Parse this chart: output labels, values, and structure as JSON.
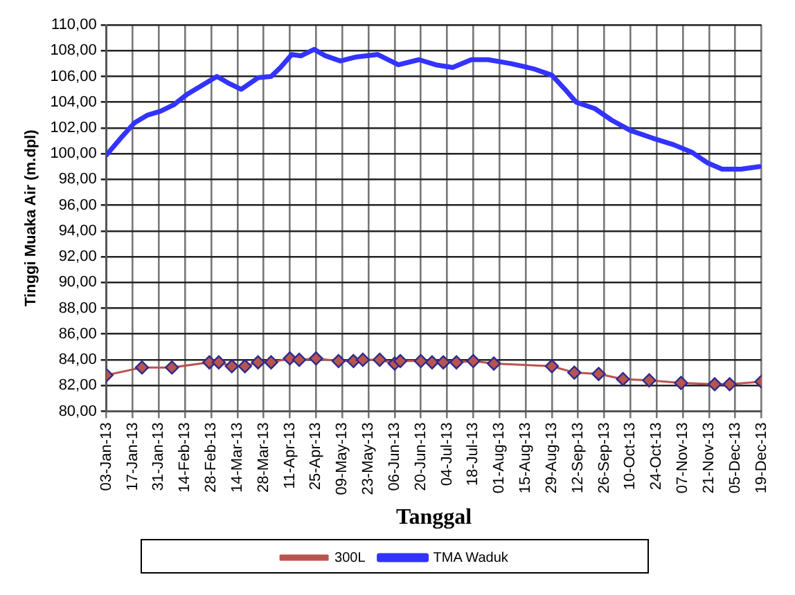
{
  "chart_data": {
    "type": "line",
    "xlabel": "Tanggal",
    "ylabel": "Tinggi Muaka Air (m.dpl)",
    "ylim": [
      80,
      110
    ],
    "yticks": [
      {
        "value": 80,
        "label": "80,00"
      },
      {
        "value": 82,
        "label": "82,00"
      },
      {
        "value": 84,
        "label": "84,00"
      },
      {
        "value": 86,
        "label": "86,00"
      },
      {
        "value": 88,
        "label": "88,00"
      },
      {
        "value": 90,
        "label": "90,00"
      },
      {
        "value": 92,
        "label": "92,00"
      },
      {
        "value": 94,
        "label": "94,00"
      },
      {
        "value": 96,
        "label": "96,00"
      },
      {
        "value": 98,
        "label": "98,00"
      },
      {
        "value": 100,
        "label": "100,00"
      },
      {
        "value": 102,
        "label": "102,00"
      },
      {
        "value": 104,
        "label": "104,00"
      },
      {
        "value": 106,
        "label": "106,00"
      },
      {
        "value": 108,
        "label": "108,00"
      },
      {
        "value": 110,
        "label": "110,00"
      }
    ],
    "xlim": [
      "--01-03",
      "--12-19"
    ],
    "xticks": [
      {
        "value": "--01-03",
        "label": "03-Jan-13"
      },
      {
        "value": "--01-17",
        "label": "17-Jan-13"
      },
      {
        "value": "--01-31",
        "label": "31-Jan-13"
      },
      {
        "value": "--02-14",
        "label": "14-Feb-13"
      },
      {
        "value": "--02-28",
        "label": "28-Feb-13"
      },
      {
        "value": "--03-14",
        "label": "14-Mar-13"
      },
      {
        "value": "--03-28",
        "label": "28-Mar-13"
      },
      {
        "value": "--04-11",
        "label": "11-Apr-13"
      },
      {
        "value": "--04-25",
        "label": "25-Apr-13"
      },
      {
        "value": "--05-09",
        "label": "09-May-13"
      },
      {
        "value": "--05-23",
        "label": "23-May-13"
      },
      {
        "value": "--06-06",
        "label": "06-Jun-13"
      },
      {
        "value": "--06-20",
        "label": "20-Jun-13"
      },
      {
        "value": "--07-04",
        "label": "04-Jul-13"
      },
      {
        "value": "--07-18",
        "label": "18-Jul-13"
      },
      {
        "value": "--08-01",
        "label": "01-Aug-13"
      },
      {
        "value": "--08-15",
        "label": "15-Aug-13"
      },
      {
        "value": "--08-29",
        "label": "29-Aug-13"
      },
      {
        "value": "--09-12",
        "label": "12-Sep-13"
      },
      {
        "value": "--09-26",
        "label": "26-Sep-13"
      },
      {
        "value": "--10-10",
        "label": "10-Oct-13"
      },
      {
        "value": "--10-24",
        "label": "24-Oct-13"
      },
      {
        "value": "--11-07",
        "label": "07-Nov-13"
      },
      {
        "value": "--11-21",
        "label": "21-Nov-13"
      },
      {
        "value": "--12-05",
        "label": "05-Dec-13"
      },
      {
        "value": "--12-19",
        "label": "19-Dec-13"
      }
    ],
    "grid": true,
    "legend": "bottom",
    "line_style": "solid",
    "series": [
      {
        "name": "300L",
        "color": "#b85450",
        "marker": "diamond",
        "x": [
          "--01-03",
          "--01-22",
          "--02-07",
          "--02-27",
          "--03-04",
          "--03-11",
          "--03-18",
          "--03-25",
          "--04-01",
          "--04-11",
          "--04-16",
          "--04-25",
          "--05-07",
          "--05-15",
          "--05-20",
          "--05-29",
          "--06-06",
          "--06-09",
          "--06-20",
          "--06-26",
          "--07-02",
          "--07-09",
          "--07-18",
          "--07-29",
          "--08-29",
          "--09-10",
          "--09-23",
          "--10-06",
          "--10-20",
          "--11-06",
          "--11-24",
          "--12-02",
          "--12-19"
        ],
        "values": [
          82.8,
          83.4,
          83.4,
          83.8,
          83.8,
          83.5,
          83.5,
          83.8,
          83.8,
          84.1,
          84.0,
          84.1,
          83.9,
          83.9,
          84.0,
          84.0,
          83.7,
          83.9,
          83.9,
          83.8,
          83.8,
          83.8,
          83.9,
          83.7,
          83.5,
          83.0,
          82.9,
          82.5,
          82.4,
          82.2,
          82.1,
          82.1,
          82.3
        ]
      },
      {
        "name": "TMA Waduk",
        "color": "#3333ff",
        "marker": "none",
        "x": [
          "--01-03",
          "--01-10",
          "--01-18",
          "--01-25",
          "--02-01",
          "--02-08",
          "--02-15",
          "--02-23",
          "--03-03",
          "--03-09",
          "--03-16",
          "--03-25",
          "--04-01",
          "--04-06",
          "--04-12",
          "--04-17",
          "--04-24",
          "--04-30",
          "--05-08",
          "--05-16",
          "--05-28",
          "--06-08",
          "--06-19",
          "--06-28",
          "--07-07",
          "--07-17",
          "--07-26",
          "--08-07",
          "--08-19",
          "--08-29",
          "--09-05",
          "--09-11",
          "--09-21",
          "--09-30",
          "--10-10",
          "--10-22",
          "--11-02",
          "--11-12",
          "--11-20",
          "--11-28",
          "--12-08",
          "--12-18"
        ],
        "values": [
          99.9,
          101.1,
          102.4,
          103.0,
          103.3,
          103.8,
          104.6,
          105.3,
          106.0,
          105.5,
          105.0,
          105.9,
          106.0,
          106.7,
          107.7,
          107.6,
          108.1,
          107.6,
          107.2,
          107.5,
          107.7,
          106.9,
          107.3,
          106.9,
          106.7,
          107.3,
          107.3,
          107.0,
          106.6,
          106.1,
          105.0,
          104.0,
          103.5,
          102.6,
          101.8,
          101.2,
          100.7,
          100.1,
          99.3,
          98.8,
          98.8,
          99.0
        ]
      }
    ]
  }
}
